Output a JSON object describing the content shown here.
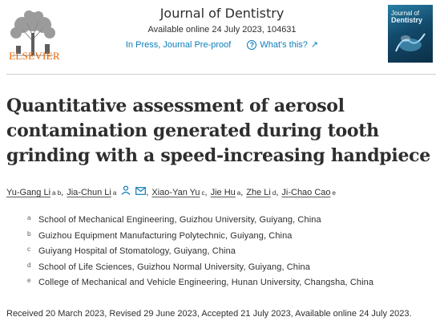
{
  "header": {
    "publisher": "ELSEVIER",
    "journal_name": "Journal of Dentistry",
    "availability": "Available online 24 July 2023, 104631",
    "status_link": "In Press, Journal Pre-proof",
    "help_link": "What's this?",
    "cover": {
      "title_small": "Journal of",
      "title_large": "Dentistry"
    }
  },
  "article": {
    "title": "Quantitative assessment of aerosol contamination generated during tooth grinding with a speed-increasing handpiece",
    "authors": [
      {
        "name": "Yu-Gang Li",
        "sup": "a b"
      },
      {
        "name": "Jia-Chun Li",
        "sup": "a"
      },
      {
        "name": "Xiao-Yan Yu",
        "sup": "c"
      },
      {
        "name": "Jie Hu",
        "sup": "a"
      },
      {
        "name": "Zhe Li",
        "sup": "d"
      },
      {
        "name": "Ji-Chao Cao",
        "sup": "e"
      }
    ],
    "affiliations": [
      {
        "letter": "a",
        "text": "School of Mechanical Engineering, Guizhou University, Guiyang, China"
      },
      {
        "letter": "b",
        "text": "Guizhou Equipment Manufacturing Polytechnic, Guiyang, China"
      },
      {
        "letter": "c",
        "text": "Guiyang Hospital of Stomatology, Guiyang, China"
      },
      {
        "letter": "d",
        "text": "School of Life Sciences, Guizhou Normal University, Guiyang, China"
      },
      {
        "letter": "e",
        "text": "College of Mechanical and Vehicle Engineering, Hunan University, Changsha, China"
      }
    ],
    "dates": "Received 20 March 2023, Revised 29 June 2023, Accepted 21 July 2023, Available online 24 July 2023."
  },
  "colors": {
    "link": "#0c7dbb",
    "publisher": "#eb6500",
    "text": "#2e2e2e"
  }
}
